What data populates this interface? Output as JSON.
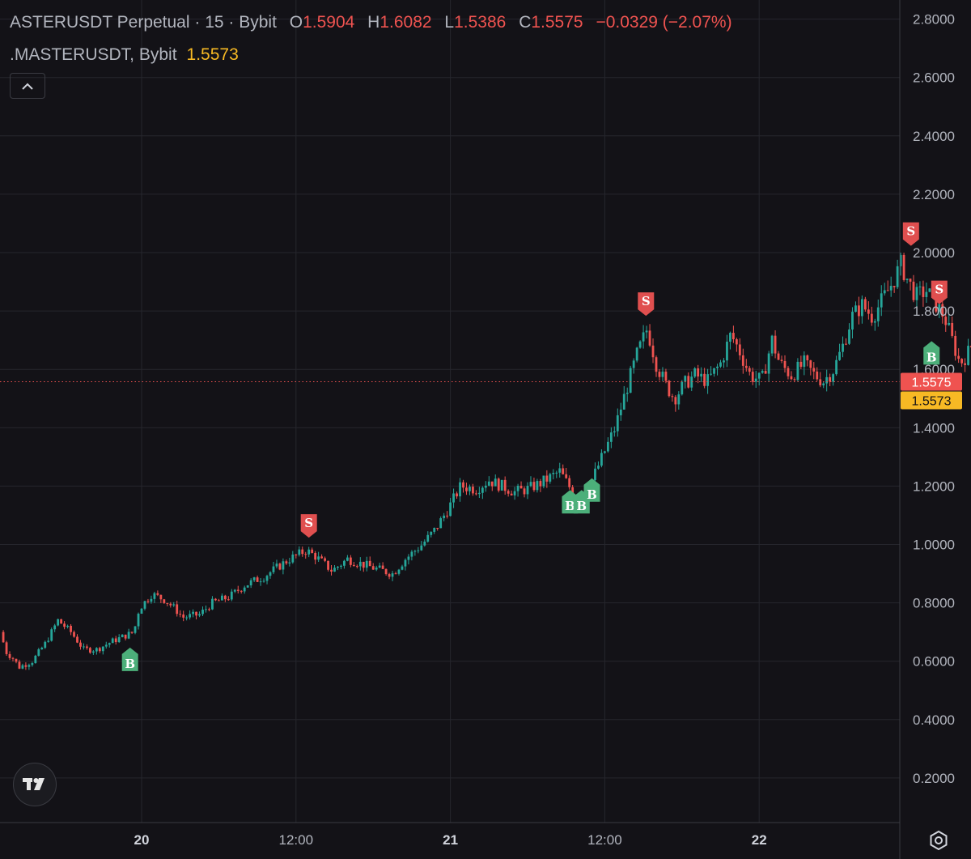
{
  "header": {
    "symbol": "ASTERUSDT Perpetual · 15 · Bybit",
    "o_label": "O",
    "o_value": "1.5904",
    "h_label": "H",
    "h_value": "1.6082",
    "l_label": "L",
    "l_value": "1.5386",
    "c_label": "C",
    "c_value": "1.5575",
    "change": "−0.0329 (−2.07%)",
    "indicator_name": ".MASTERUSDT, Bybit",
    "indicator_value": "1.5573"
  },
  "price_tags": {
    "last": "1.5575",
    "indicator": "1.5573"
  },
  "colors": {
    "background": "#131217",
    "up": "#26a69a",
    "down": "#ef5350",
    "buy_marker": "#4caf7a",
    "sell_marker": "#e04f4f",
    "indicator": "#f7b924",
    "grid": "#26262d"
  },
  "icons": [
    "chevron-up-icon",
    "tradingview-logo-icon",
    "settings-gear-icon"
  ],
  "chart_data": {
    "type": "candlestick",
    "interval": "15",
    "grid": true,
    "x_ticks": [
      "20",
      "12:00",
      "21",
      "12:00",
      "22"
    ],
    "y_ticks": [
      "0.2000",
      "0.4000",
      "0.6000",
      "0.8000",
      "1.0000",
      "1.2000",
      "1.4000",
      "1.6000",
      "1.8000",
      "2.0000",
      "2.2000",
      "2.4000",
      "2.6000",
      "2.8000"
    ],
    "ylim": [
      0.0,
      2.85
    ],
    "xlim_hours": [
      -13,
      45
    ],
    "last_price": 1.5575,
    "indicator_price": 1.5573,
    "path_anchors": [
      [
        -11.0,
        0.7
      ],
      [
        -10.5,
        0.63
      ],
      [
        -10.0,
        0.61
      ],
      [
        -9.5,
        0.58
      ],
      [
        -8.5,
        0.6
      ],
      [
        -7.5,
        0.66
      ],
      [
        -6.5,
        0.74
      ],
      [
        -5.5,
        0.7
      ],
      [
        -4.5,
        0.64
      ],
      [
        -3.5,
        0.64
      ],
      [
        -2.2,
        0.67
      ],
      [
        -0.6,
        0.7
      ],
      [
        -0.2,
        0.78
      ],
      [
        0.8,
        0.83
      ],
      [
        1.8,
        0.81
      ],
      [
        2.6,
        0.78
      ],
      [
        3.2,
        0.75
      ],
      [
        4.5,
        0.76
      ],
      [
        5.5,
        0.8
      ],
      [
        6.8,
        0.82
      ],
      [
        8.0,
        0.86
      ],
      [
        9.5,
        0.89
      ],
      [
        11.5,
        0.95
      ],
      [
        12.8,
        0.98
      ],
      [
        13.5,
        0.96
      ],
      [
        14.8,
        0.91
      ],
      [
        16.0,
        0.95
      ],
      [
        18.0,
        0.92
      ],
      [
        19.5,
        0.9
      ],
      [
        20.5,
        0.95
      ],
      [
        21.8,
        1.0
      ],
      [
        22.8,
        1.05
      ],
      [
        23.8,
        1.12
      ],
      [
        24.8,
        1.2
      ],
      [
        26.0,
        1.19
      ],
      [
        27.0,
        1.22
      ],
      [
        28.0,
        1.2
      ],
      [
        29.0,
        1.18
      ],
      [
        30.0,
        1.19
      ],
      [
        31.0,
        1.21
      ],
      [
        32.5,
        1.25
      ],
      [
        33.5,
        1.18
      ],
      [
        34.5,
        1.17
      ],
      [
        35.2,
        1.24
      ],
      [
        36.0,
        1.32
      ],
      [
        36.8,
        1.4
      ],
      [
        37.6,
        1.52
      ],
      [
        38.5,
        1.65
      ],
      [
        39.3,
        1.74
      ],
      [
        40.0,
        1.62
      ],
      [
        40.7,
        1.55
      ],
      [
        41.4,
        1.5
      ],
      [
        42.2,
        1.55
      ],
      [
        43.0,
        1.58
      ],
      [
        44.0,
        1.56
      ],
      [
        45.0,
        1.62
      ],
      [
        45.8,
        1.72
      ],
      [
        46.5,
        1.66
      ],
      [
        47.3,
        1.58
      ],
      [
        48.2,
        1.56
      ],
      [
        49.0,
        1.7
      ],
      [
        49.6,
        1.62
      ],
      [
        50.5,
        1.58
      ],
      [
        51.5,
        1.62
      ],
      [
        52.3,
        1.58
      ],
      [
        53.0,
        1.56
      ],
      [
        53.8,
        1.6
      ],
      [
        54.5,
        1.68
      ],
      [
        55.2,
        1.78
      ],
      [
        56.0,
        1.82
      ],
      [
        56.8,
        1.78
      ],
      [
        57.6,
        1.84
      ],
      [
        58.4,
        1.9
      ],
      [
        59.0,
        1.96
      ],
      [
        59.6,
        1.9
      ],
      [
        60.2,
        1.85
      ],
      [
        61.0,
        1.87
      ],
      [
        61.8,
        1.82
      ],
      [
        62.4,
        1.78
      ],
      [
        63.0,
        1.7
      ],
      [
        63.6,
        1.62
      ],
      [
        64.3,
        1.66
      ],
      [
        65.0,
        1.72
      ],
      [
        65.8,
        1.68
      ],
      [
        66.6,
        1.64
      ],
      [
        67.4,
        1.6
      ],
      [
        68.0,
        1.58
      ],
      [
        68.8,
        1.64
      ],
      [
        69.6,
        1.68
      ],
      [
        70.3,
        1.6
      ],
      [
        70.9,
        1.53
      ],
      [
        71.5,
        1.56
      ],
      [
        72.0,
        1.58
      ]
    ],
    "signals": [
      {
        "type": "B",
        "t": -0.9,
        "price": 0.63
      },
      {
        "type": "S",
        "t": 13.0,
        "price": 1.04
      },
      {
        "type": "B",
        "t": 33.3,
        "price": 1.17
      },
      {
        "type": "B",
        "t": 34.2,
        "price": 1.17
      },
      {
        "type": "B",
        "t": 35.0,
        "price": 1.21
      },
      {
        "type": "S",
        "t": 39.2,
        "price": 1.8
      },
      {
        "type": "S",
        "t": 59.8,
        "price": 2.04
      },
      {
        "type": "S",
        "t": 62.0,
        "price": 1.84
      },
      {
        "type": "B",
        "t": 61.4,
        "price": 1.68
      }
    ]
  }
}
